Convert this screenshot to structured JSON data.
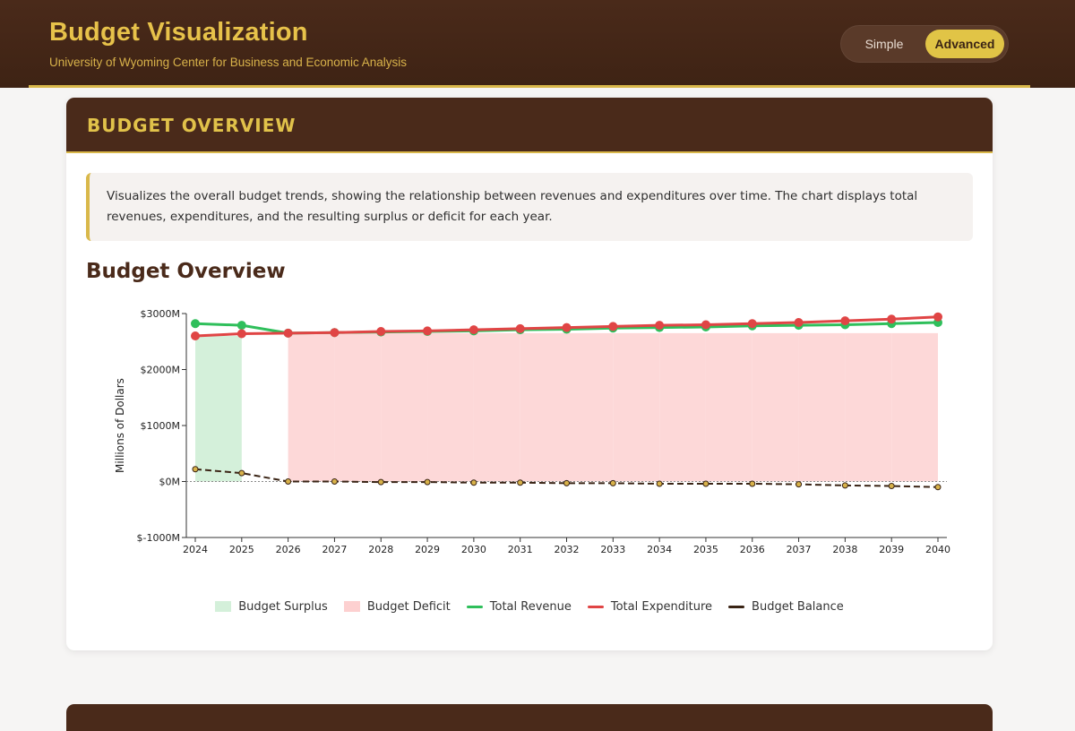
{
  "header": {
    "title": "Budget Visualization",
    "subtitle": "University of Wyoming Center for Business and Economic Analysis",
    "mode_toggle": {
      "simple_label": "Simple",
      "advanced_label": "Advanced",
      "selected": "Advanced"
    }
  },
  "section": {
    "header_title": "BUDGET OVERVIEW",
    "description": "Visualizes the overall budget trends, showing the relationship between revenues and expenditures over time. The chart displays total revenues, expenditures, and the resulting surplus or deficit for each year.",
    "chart_title": "Budget Overview"
  },
  "colors": {
    "revenue": "#2fbf5b",
    "expenditure": "#e04545",
    "balance": "#3a2415",
    "surplus_fill": "#d4f0da",
    "deficit_fill": "#fdd8d8",
    "point_fill": "#d8b24a"
  },
  "chart_data": {
    "type": "line",
    "title": "Budget Overview",
    "xlabel": "",
    "ylabel": "Millions of Dollars",
    "ylim": [
      -1000,
      3000
    ],
    "yticks": [
      -1000,
      0,
      1000,
      2000,
      3000
    ],
    "ytick_labels": [
      "$-1000M",
      "$0M",
      "$1000M",
      "$2000M",
      "$3000M"
    ],
    "x": [
      2024,
      2025,
      2026,
      2027,
      2028,
      2029,
      2030,
      2031,
      2032,
      2033,
      2034,
      2035,
      2036,
      2037,
      2038,
      2039,
      2040
    ],
    "series": [
      {
        "name": "Total Revenue",
        "values": [
          2820,
          2790,
          2650,
          2660,
          2670,
          2680,
          2690,
          2710,
          2720,
          2740,
          2750,
          2760,
          2780,
          2790,
          2800,
          2820,
          2840
        ]
      },
      {
        "name": "Total Expenditure",
        "values": [
          2600,
          2640,
          2650,
          2660,
          2680,
          2690,
          2710,
          2730,
          2750,
          2770,
          2790,
          2800,
          2820,
          2840,
          2870,
          2900,
          2940
        ]
      },
      {
        "name": "Budget Balance",
        "values": [
          220,
          150,
          0,
          0,
          -10,
          -10,
          -20,
          -20,
          -30,
          -30,
          -40,
          -40,
          -40,
          -50,
          -70,
          -80,
          -100
        ]
      }
    ],
    "legend": [
      "Budget Surplus",
      "Budget Deficit",
      "Total Revenue",
      "Total Expenditure",
      "Budget Balance"
    ],
    "legend_position": "bottom",
    "grid": false
  }
}
